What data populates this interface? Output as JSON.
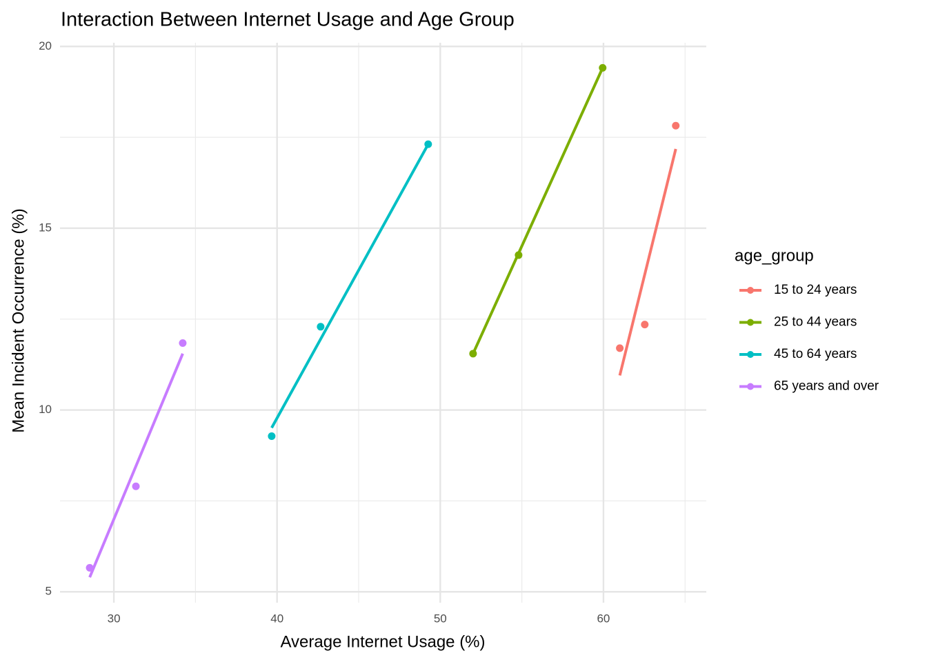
{
  "chart_data": {
    "type": "scatter",
    "title": "Interaction Between Internet Usage and Age Group",
    "x_label": "Average Internet Usage (%)",
    "y_label": "Mean Incident Occurrence (%)",
    "legend_title": "age_group",
    "legend_position": "right",
    "grid": true,
    "xlim": [
      26.7,
      66.3
    ],
    "ylim": [
      4.7,
      20.1
    ],
    "xticks": [
      30,
      40,
      50,
      60
    ],
    "yticks": [
      5,
      10,
      15,
      20
    ],
    "x_minor_ticks": [
      35,
      45,
      55,
      65
    ],
    "y_minor_ticks": [
      7.5,
      12.5,
      17.5
    ],
    "series": [
      {
        "name": "15 to 24 years",
        "color": "#F8766D",
        "x": [
          61.0,
          62.53,
          64.43
        ],
        "values": [
          11.7,
          12.35,
          17.82
        ],
        "fit_x": [
          61.0,
          64.43
        ],
        "fit_values": [
          10.95,
          17.18
        ]
      },
      {
        "name": "25 to 44 years",
        "color": "#7CAE00",
        "x": [
          52.01,
          54.8,
          59.95
        ],
        "values": [
          11.55,
          14.26,
          19.41
        ],
        "fit_x": [
          52.01,
          59.95
        ],
        "fit_values": [
          11.55,
          19.41
        ]
      },
      {
        "name": "45 to 64 years",
        "color": "#00BFC4",
        "x": [
          39.67,
          42.67,
          49.26
        ],
        "values": [
          9.28,
          12.29,
          17.31
        ],
        "fit_x": [
          39.67,
          49.26
        ],
        "fit_values": [
          9.51,
          17.31
        ]
      },
      {
        "name": "65 years and over",
        "color": "#C77CFF",
        "x": [
          28.52,
          31.35,
          34.22
        ],
        "values": [
          5.66,
          7.9,
          11.84
        ],
        "fit_x": [
          28.52,
          34.22
        ],
        "fit_values": [
          5.4,
          11.55
        ]
      }
    ]
  }
}
